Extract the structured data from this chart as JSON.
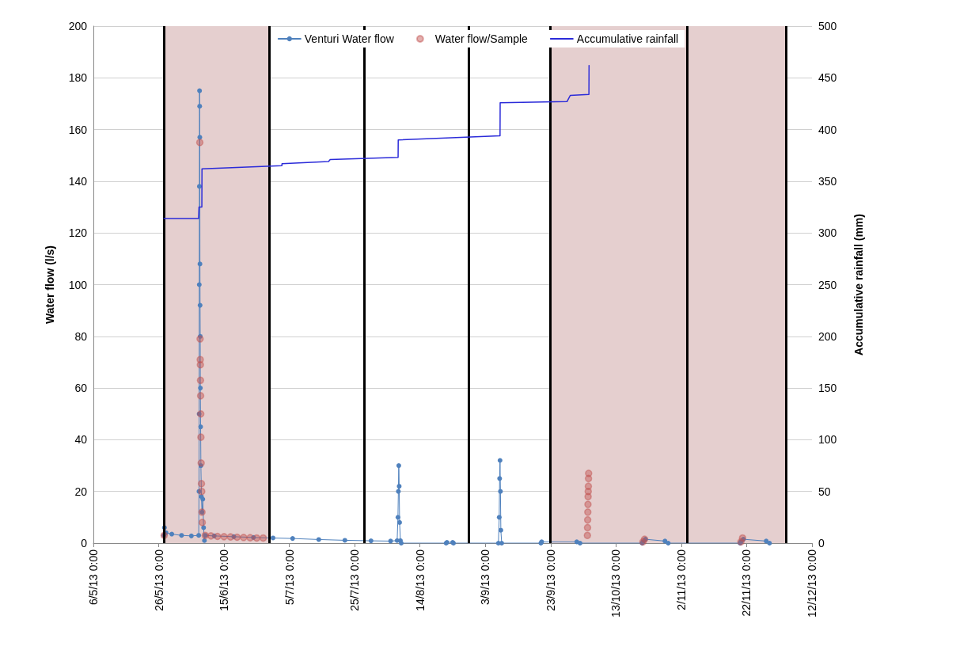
{
  "chart_data": {
    "type": "line",
    "ylabel": "Water flow (l/s)",
    "y2label": "Accumulative rainfall (mm)",
    "xlim": [
      "2013-05-06",
      "2013-12-12"
    ],
    "xticks": [
      {
        "value": "2013-05-06",
        "label": "6/5/13 0:00"
      },
      {
        "value": "2013-05-26",
        "label": "26/5/13 0:00"
      },
      {
        "value": "2013-06-15",
        "label": "15/6/13 0:00"
      },
      {
        "value": "2013-07-05",
        "label": "5/7/13 0:00"
      },
      {
        "value": "2013-07-25",
        "label": "25/7/13 0:00"
      },
      {
        "value": "2013-08-14",
        "label": "14/8/13 0:00"
      },
      {
        "value": "2013-09-03",
        "label": "3/9/13 0:00"
      },
      {
        "value": "2013-09-23",
        "label": "23/9/13 0:00"
      },
      {
        "value": "2013-10-13",
        "label": "13/10/13 0:00"
      },
      {
        "value": "2013-11-02",
        "label": "2/11/13 0:00"
      },
      {
        "value": "2013-11-22",
        "label": "22/11/13 0:00"
      },
      {
        "value": "2013-12-12",
        "label": "12/12/13 0:00"
      }
    ],
    "ylim": [
      0,
      200
    ],
    "yticks": [
      0,
      20,
      40,
      60,
      80,
      100,
      120,
      140,
      160,
      180,
      200
    ],
    "y2lim": [
      0,
      500
    ],
    "y2ticks": [
      0,
      50,
      100,
      150,
      200,
      250,
      300,
      350,
      400,
      450,
      500
    ],
    "grid": "y",
    "legend": "top",
    "bands": [
      {
        "axis": "x",
        "from": "2013-05-27T14:00",
        "to": "2013-06-28T19:00",
        "color": "#e5cfcf"
      },
      {
        "axis": "x",
        "from": "2013-09-22T19:00",
        "to": "2013-11-03T17:00",
        "color": "#e5cfcf"
      },
      {
        "axis": "x",
        "from": "2013-11-03T17:00",
        "to": "2013-12-04",
        "color": "#e5cfcf"
      }
    ],
    "ref_lines": [
      {
        "axis": "x",
        "value": "2013-05-27T14:00",
        "color": "#000000"
      },
      {
        "axis": "x",
        "value": "2013-06-28T19:00",
        "color": "#000000"
      },
      {
        "axis": "x",
        "value": "2013-07-27T22:00",
        "color": "#000000"
      },
      {
        "axis": "x",
        "value": "2013-08-29",
        "color": "#000000"
      },
      {
        "axis": "x",
        "value": "2013-09-22T19:00",
        "color": "#000000"
      },
      {
        "axis": "x",
        "value": "2013-11-03T17:00",
        "color": "#000000"
      },
      {
        "axis": "x",
        "value": "2013-12-04",
        "color": "#000000"
      }
    ],
    "series": [
      {
        "name": "Venturi Water flow",
        "marker": "circle",
        "color": "#4f81bd",
        "x": [
          "2013-05-27T14:00",
          "2013-05-27T18:00",
          "2013-05-28T06:00",
          "2013-05-30",
          "2013-06-02",
          "2013-06-05",
          "2013-06-07T06:00",
          "2013-06-07T08:00",
          "2013-06-07T09:00",
          "2013-06-07T10:00",
          "2013-06-07T11:00",
          "2013-06-07T12:00",
          "2013-06-07T13:00",
          "2013-06-07T14:00",
          "2013-06-07T15:00",
          "2013-06-07T16:00",
          "2013-06-07T17:00",
          "2013-06-07T18:00",
          "2013-06-07T20:00",
          "2013-06-07T22:00",
          "2013-06-08T02:00",
          "2013-06-08T06:00",
          "2013-06-08T12:00",
          "2013-06-08T18:00",
          "2013-06-09",
          "2013-06-09T06:00",
          "2013-06-12",
          "2013-06-18",
          "2013-06-24",
          "2013-06-30",
          "2013-07-06",
          "2013-07-14",
          "2013-07-22",
          "2013-07-30",
          "2013-08-05",
          "2013-08-07",
          "2013-08-07T06:00",
          "2013-08-07T09:00",
          "2013-08-07T12:00",
          "2013-08-07T15:00",
          "2013-08-07T18:00",
          "2013-08-08",
          "2013-08-08T06:00",
          "2013-08-22",
          "2013-08-22T06:00",
          "2013-08-24",
          "2013-08-24T06:00",
          "2013-09-07",
          "2013-09-07T06:00",
          "2013-09-07T09:00",
          "2013-09-07T12:00",
          "2013-09-07T15:00",
          "2013-09-07T18:00",
          "2013-09-08",
          "2013-09-20",
          "2013-09-20T06:00",
          "2013-10-01",
          "2013-10-02",
          "2013-10-21",
          "2013-10-21T06:00",
          "2013-10-22",
          "2013-10-28",
          "2013-10-29",
          "2013-11-20",
          "2013-11-20T06:00",
          "2013-11-21",
          "2013-11-28",
          "2013-11-29"
        ],
        "values": [
          3,
          6,
          4,
          3.5,
          3,
          2.8,
          3,
          20,
          50,
          100,
          138,
          175,
          169,
          157,
          108,
          92,
          80,
          60,
          45,
          30,
          18,
          12,
          17,
          6,
          1,
          3,
          2.8,
          2.5,
          2.2,
          2,
          1.8,
          1.4,
          1.1,
          0.9,
          0.8,
          1,
          10,
          20,
          30,
          22,
          8,
          1,
          0,
          0,
          0.3,
          0.3,
          0,
          0,
          10,
          25,
          32,
          20,
          5,
          0,
          0,
          0.5,
          0.5,
          0,
          0,
          0.5,
          1.5,
          0.8,
          0,
          0,
          0.5,
          1.5,
          0.8,
          0
        ]
      },
      {
        "name": "Water flow/Sample",
        "type": "scatter",
        "marker": "circle",
        "color": "#c0504d",
        "x": [
          "2013-05-27T16:00",
          "2013-06-07T14:00",
          "2013-06-07T16:00",
          "2013-06-07T17:00",
          "2013-06-07T18:00",
          "2013-06-07T19:00",
          "2013-06-07T20:00",
          "2013-06-07T21:00",
          "2013-06-07T22:00",
          "2013-06-08T00:00",
          "2013-06-08T02:00",
          "2013-06-08T04:00",
          "2013-06-08T06:00",
          "2013-06-08T08:00",
          "2013-06-09T06:00",
          "2013-06-11",
          "2013-06-13",
          "2013-06-15",
          "2013-06-17",
          "2013-06-19",
          "2013-06-21",
          "2013-06-23",
          "2013-06-25",
          "2013-06-27",
          "2013-10-04T06:00",
          "2013-10-04T07:00",
          "2013-10-04T08:00",
          "2013-10-04T09:00",
          "2013-10-04T10:00",
          "2013-10-04T11:00",
          "2013-10-04T12:00",
          "2013-10-04T13:00",
          "2013-10-04T14:00",
          "2013-10-04T15:00",
          "2013-10-21T06:00",
          "2013-10-21T18:00",
          "2013-11-20T06:00",
          "2013-11-20T18:00"
        ],
        "values": [
          3,
          155,
          79,
          71,
          69,
          63,
          57,
          50,
          41,
          31,
          23,
          20,
          12,
          8,
          3,
          2.8,
          2.6,
          2.5,
          2.4,
          2.3,
          2.2,
          2.1,
          2,
          2,
          3,
          6,
          9,
          12,
          15,
          18,
          20,
          22,
          25,
          27,
          0.5,
          1.5,
          0.5,
          2
        ]
      },
      {
        "name": "Accumulative rainfall",
        "type": "line",
        "axis": "y2",
        "marker": "none",
        "line_style": "solid",
        "color": "#2b2bd9",
        "x": [
          "2013-05-27T14:00",
          "2013-06-07T05:00",
          "2013-06-07T08:00",
          "2013-06-08T05:00",
          "2013-06-08T06:00",
          "2013-07-02T17:00",
          "2013-07-02T18:00",
          "2013-07-17",
          "2013-07-17T12:00",
          "2013-08-07T07:00",
          "2013-08-07T08:00",
          "2013-09-07T12:00",
          "2013-09-07T13:00",
          "2013-09-28",
          "2013-09-29",
          "2013-10-04T17:00",
          "2013-10-04T18:00"
        ],
        "values": [
          314,
          314,
          325,
          325,
          362,
          365,
          367,
          369,
          371,
          373,
          390,
          394,
          426,
          427,
          433,
          434,
          462
        ]
      }
    ]
  }
}
